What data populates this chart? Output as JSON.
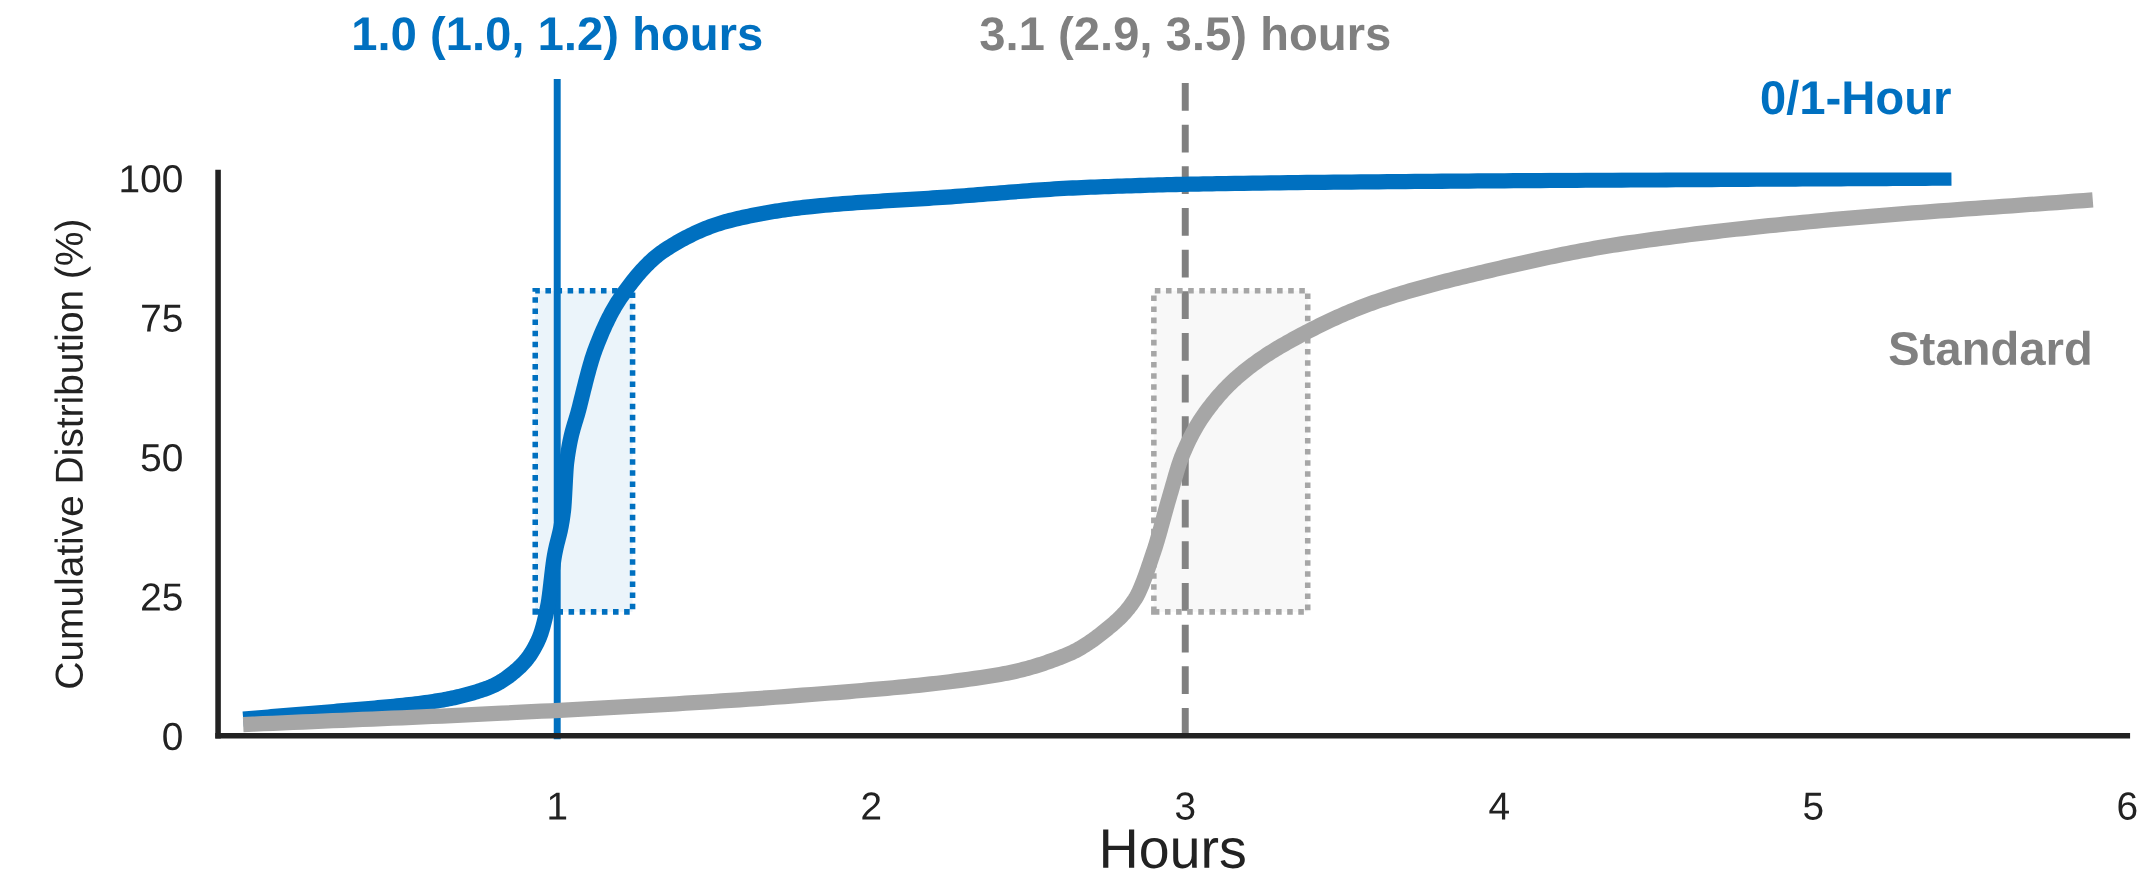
{
  "chart_data": {
    "type": "line",
    "xlabel": "Hours",
    "ylabel": "Cumulative Distribution (%)",
    "series": [
      {
        "name": "0/1-Hour",
        "color": "#0070c0",
        "x": [
          0.0,
          0.3,
          0.6,
          0.78,
          0.88,
          0.94,
          0.97,
          0.99,
          1.02,
          1.03,
          1.07,
          1.12,
          1.2,
          1.34,
          1.55,
          1.81,
          2.24,
          2.67,
          3.1,
          3.96,
          4.82,
          5.44
        ],
        "values": [
          3,
          4.4,
          6.1,
          8.6,
          12.3,
          17.2,
          23.3,
          31.9,
          40.4,
          49.0,
          58.8,
          69.1,
          78.4,
          87.0,
          92.4,
          94.9,
          96.6,
          98.3,
          99.0,
          99.5,
          99.8,
          100.0
        ]
      },
      {
        "name": "Standard",
        "color": "#a6a6a6",
        "x": [
          0,
          0.95,
          1.81,
          2.41,
          2.63,
          2.75,
          2.84,
          2.9,
          2.95,
          2.99,
          3.06,
          3.18,
          3.36,
          3.61,
          3.96,
          4.39,
          5.03,
          5.89
        ],
        "values": [
          2.0,
          4.4,
          7.4,
          11.0,
          14.7,
          19.1,
          24.5,
          33.1,
          42.9,
          50.2,
          57.6,
          65.0,
          71.6,
          77.9,
          83.3,
          88.2,
          92.4,
          96.1
        ]
      }
    ],
    "xlim": [
      -0.08,
      6.0
    ],
    "xticks": [
      1,
      2,
      3,
      4,
      5,
      6
    ],
    "ylim": [
      0,
      101
    ],
    "yticks": [
      0,
      25,
      50,
      75,
      100
    ],
    "ref_lines": [
      {
        "axis": "x",
        "value": 1.0,
        "label": "1.0 (1.0, 1.2) hours",
        "color": "#0070c0",
        "line_style": "solid"
      },
      {
        "axis": "x",
        "value": 3.0,
        "label": "3.1 (2.9, 3.5) hours",
        "color": "#808080",
        "line_style": "dashed"
      }
    ],
    "bands": [
      {
        "axis": "x",
        "from": 0.93,
        "to": 1.24,
        "color": "#0070c0"
      },
      {
        "axis": "x",
        "from": 2.9,
        "to": 3.39,
        "color": "#a6a6a6"
      }
    ],
    "grid": false,
    "legend": false,
    "marker": "none",
    "line_style": "solid"
  }
}
